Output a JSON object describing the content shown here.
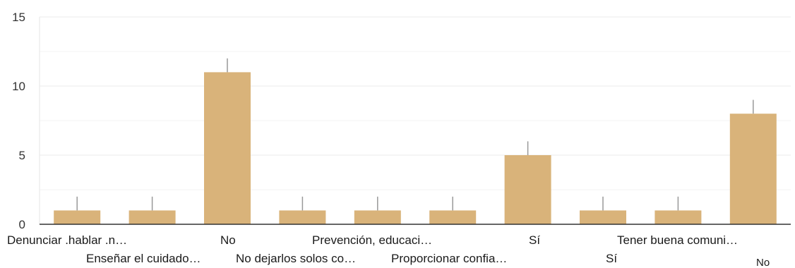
{
  "chart_data": {
    "type": "bar",
    "categories": [
      "Denunciar .hablar .n…",
      "Enseñar el cuidado…",
      "No",
      "No dejarlos solos co…",
      "Prevención, educaci…",
      "Proporcionar confia…",
      "Sí",
      "Sí",
      "Tener buena comuni…",
      "No"
    ],
    "values": [
      1,
      1,
      11,
      1,
      1,
      1,
      5,
      1,
      1,
      8
    ],
    "error_bar_top": [
      2,
      2,
      12,
      2,
      2,
      2,
      6,
      2,
      2,
      9
    ],
    "ylim": [
      0,
      15
    ],
    "yticks": [
      "0",
      "5",
      "10",
      "15"
    ],
    "ytick_values": [
      0,
      5,
      10,
      15
    ],
    "title": "",
    "xlabel": "",
    "ylabel": "",
    "grid": true,
    "bar_color": "#d9b37a",
    "error_bar_color": "#999999",
    "grid_color": "#ebebeb",
    "axis_color": "#333333"
  }
}
